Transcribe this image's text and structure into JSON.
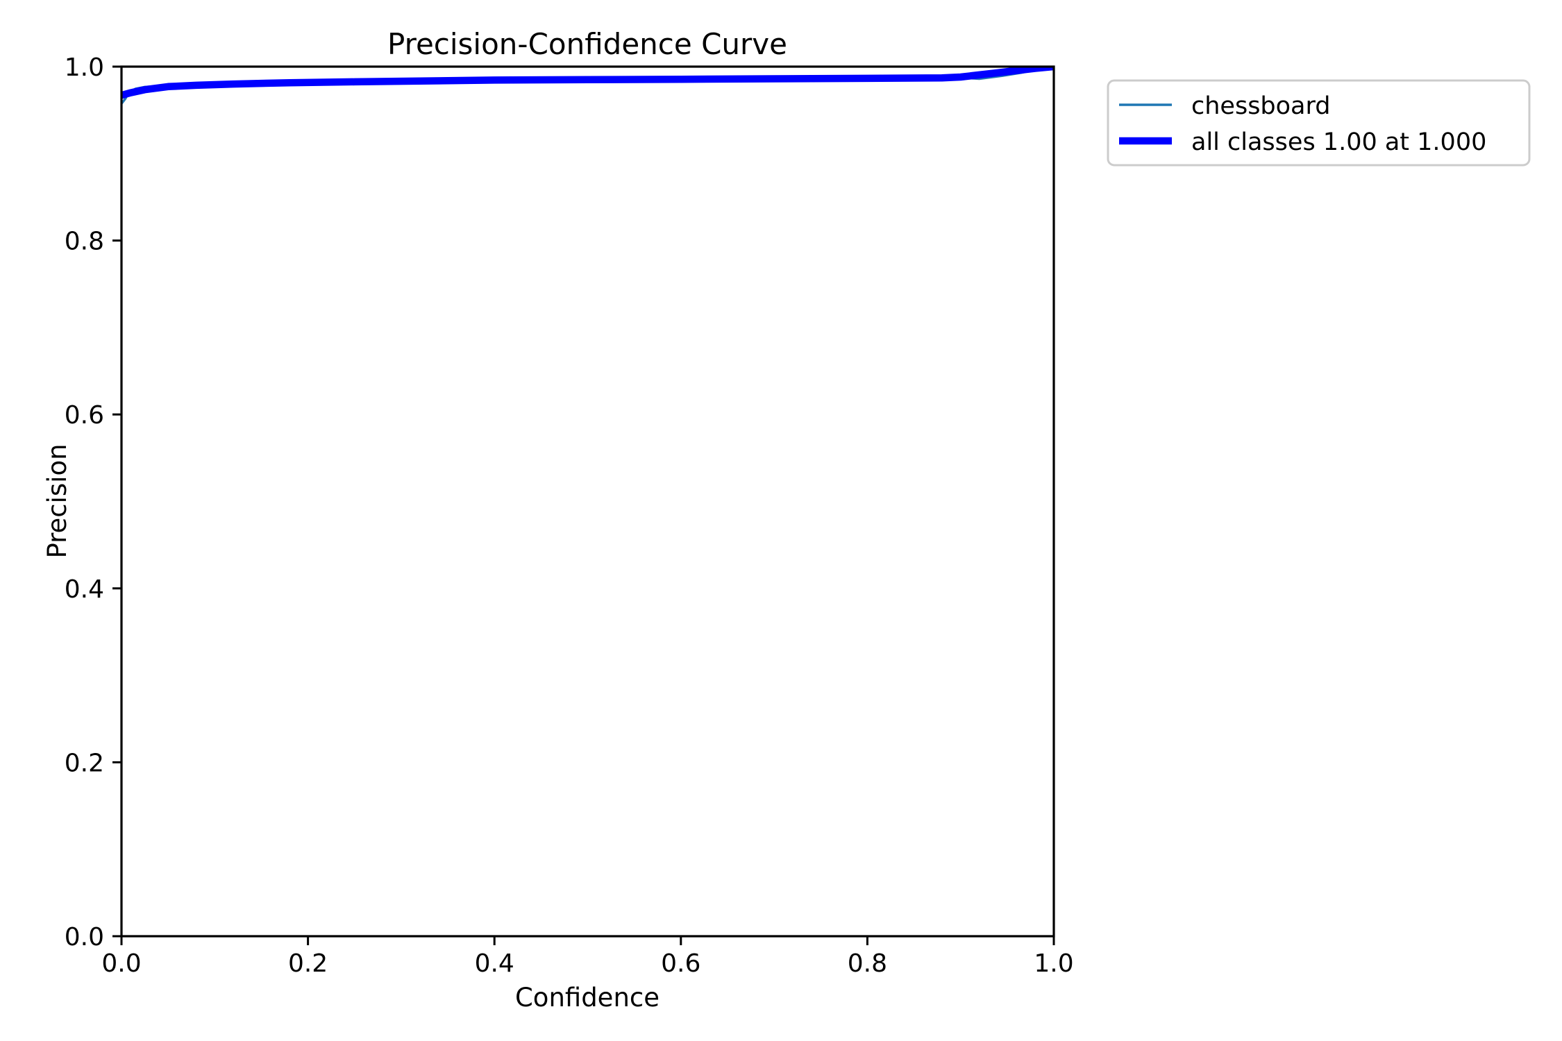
{
  "figure": {
    "background": "#ffffff",
    "axes_color": "#000000"
  },
  "chart_data": {
    "type": "line",
    "title": "Precision-Confidence Curve",
    "xlabel": "Confidence",
    "ylabel": "Precision",
    "xlim": [
      0.0,
      1.0
    ],
    "ylim": [
      0.0,
      1.0
    ],
    "grid": false,
    "x_ticks": [
      0.0,
      0.2,
      0.4,
      0.6,
      0.8,
      1.0
    ],
    "x_tick_labels": [
      "0.0",
      "0.2",
      "0.4",
      "0.6",
      "0.8",
      "1.0"
    ],
    "y_ticks": [
      0.0,
      0.2,
      0.4,
      0.6,
      0.8,
      1.0
    ],
    "y_tick_labels": [
      "0.0",
      "0.2",
      "0.4",
      "0.6",
      "0.8",
      "1.0"
    ],
    "legend": {
      "position": "outside-upper-right",
      "entries": [
        {
          "label": "chessboard",
          "color": "#1f77b4",
          "line_weight": "thin"
        },
        {
          "label": "all classes 1.00 at 1.000",
          "color": "#0000ff",
          "line_weight": "thick"
        }
      ]
    },
    "series": [
      {
        "name": "chessboard",
        "color": "#1f77b4",
        "stroke_px": 3.5,
        "points": [
          [
            0.0,
            0.9575
          ],
          [
            0.004,
            0.963
          ],
          [
            0.008,
            0.97
          ],
          [
            0.015,
            0.9745
          ],
          [
            0.025,
            0.9765
          ],
          [
            0.04,
            0.9775
          ],
          [
            0.06,
            0.9785
          ],
          [
            0.09,
            0.9795
          ],
          [
            0.13,
            0.9805
          ],
          [
            0.2,
            0.982
          ],
          [
            0.3,
            0.9835
          ],
          [
            0.4,
            0.9845
          ],
          [
            0.5,
            0.985
          ],
          [
            0.6,
            0.9855
          ],
          [
            0.7,
            0.986
          ],
          [
            0.8,
            0.9865
          ],
          [
            0.88,
            0.987
          ],
          [
            0.9,
            0.9875
          ],
          [
            0.92,
            0.986
          ],
          [
            0.945,
            0.9895
          ],
          [
            0.965,
            0.993
          ],
          [
            0.985,
            0.9975
          ],
          [
            1.0,
            1.0
          ]
        ]
      },
      {
        "name": "all classes 1.00 at 1.000",
        "color": "#0000ff",
        "stroke_px": 10.5,
        "points": [
          [
            0.0,
            0.967
          ],
          [
            0.01,
            0.97
          ],
          [
            0.025,
            0.9735
          ],
          [
            0.05,
            0.977
          ],
          [
            0.08,
            0.9785
          ],
          [
            0.12,
            0.98
          ],
          [
            0.18,
            0.9815
          ],
          [
            0.25,
            0.9825
          ],
          [
            0.32,
            0.9835
          ],
          [
            0.4,
            0.9845
          ],
          [
            0.5,
            0.985
          ],
          [
            0.6,
            0.9855
          ],
          [
            0.7,
            0.986
          ],
          [
            0.8,
            0.9865
          ],
          [
            0.88,
            0.987
          ],
          [
            0.9,
            0.988
          ],
          [
            0.92,
            0.9905
          ],
          [
            0.94,
            0.993
          ],
          [
            0.96,
            0.9955
          ],
          [
            0.98,
            0.998
          ],
          [
            1.0,
            1.0
          ]
        ]
      }
    ]
  }
}
